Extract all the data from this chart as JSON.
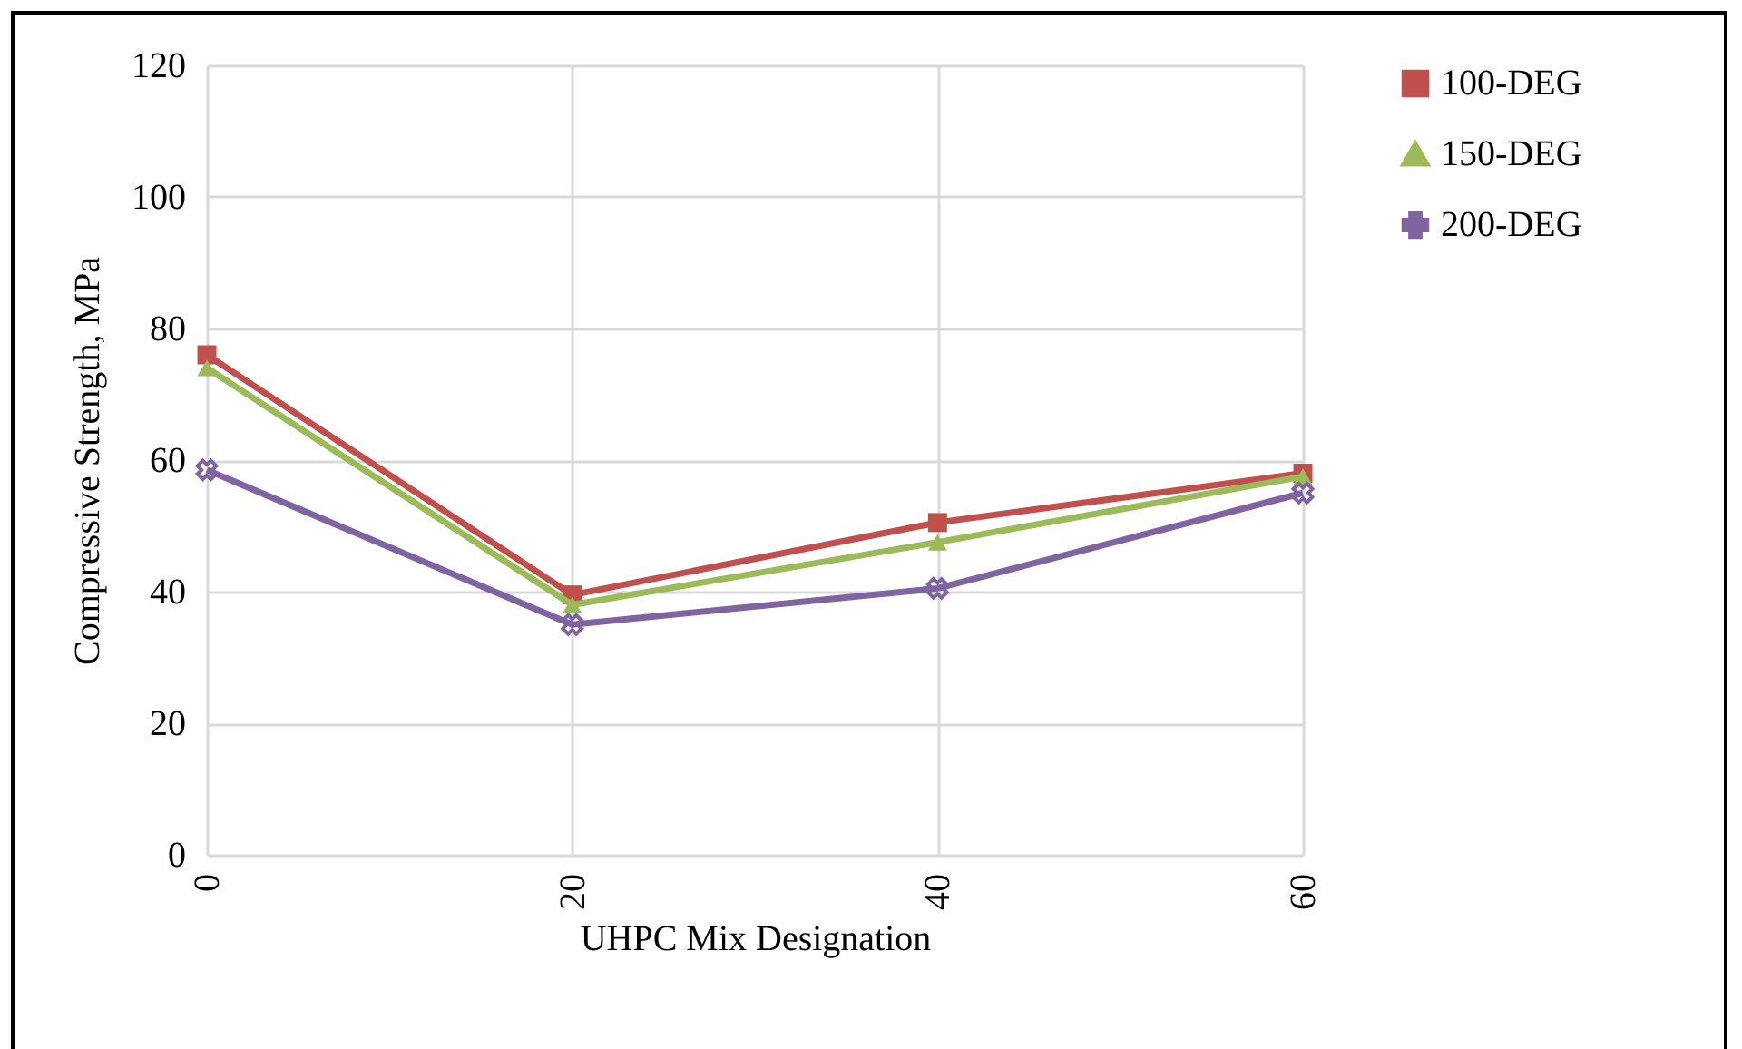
{
  "chart_data": {
    "type": "line",
    "xlabel": "UHPC Mix Designation",
    "ylabel": "Compressive Strength, MPa",
    "categories": [
      "0",
      "20",
      "40",
      "60"
    ],
    "series": [
      {
        "name": "100-DEG",
        "color": "#c0504d",
        "marker": "square",
        "values": [
          76,
          39.5,
          50.5,
          58
        ]
      },
      {
        "name": "150-DEG",
        "color": "#9bbb59",
        "marker": "triangle",
        "values": [
          74,
          38,
          47.5,
          57.5
        ]
      },
      {
        "name": "200-DEG",
        "color": "#8064a2",
        "marker": "cross",
        "values": [
          58.5,
          35,
          40.5,
          55
        ]
      }
    ],
    "ylim": [
      0,
      120
    ],
    "yticks": [
      0,
      20,
      40,
      60,
      80,
      100,
      120
    ],
    "grid": true,
    "legend": "right",
    "line_style": "solid"
  }
}
